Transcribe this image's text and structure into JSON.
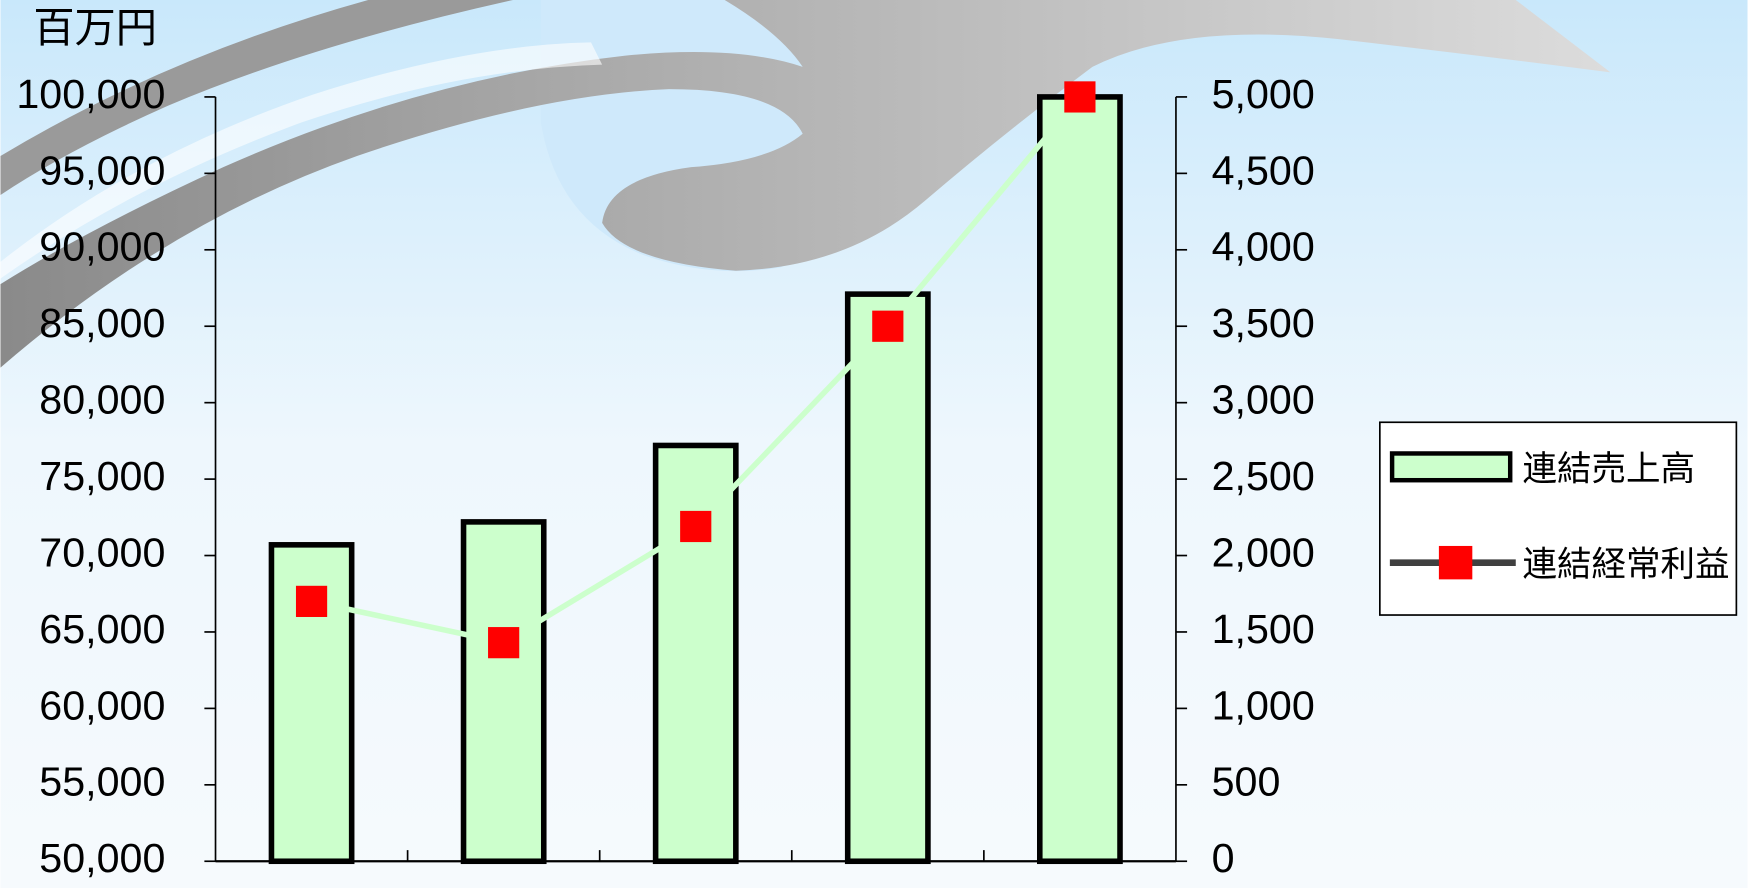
{
  "chart_data": {
    "type": "bar",
    "y_label": "百万円",
    "categories": [
      null,
      null,
      null,
      null,
      null
    ],
    "series": [
      {
        "name": "連結売上高",
        "type": "bar",
        "color": "#ccffcc",
        "values": [
          70700,
          72200,
          77200,
          87100,
          100000
        ]
      },
      {
        "name": "連結経常利益",
        "type": "line",
        "axis": "y2",
        "color": "#ff0000",
        "line_color": "#ccffcc",
        "values": [
          1700,
          1430,
          2190,
          3500,
          5000
        ]
      }
    ],
    "ylim": [
      50000,
      100000
    ],
    "yticks": [
      {
        "value": 50000,
        "label": "50,000"
      },
      {
        "value": 55000,
        "label": "55,000"
      },
      {
        "value": 60000,
        "label": "60,000"
      },
      {
        "value": 65000,
        "label": "65,000"
      },
      {
        "value": 70000,
        "label": "70,000"
      },
      {
        "value": 75000,
        "label": "75,000"
      },
      {
        "value": 80000,
        "label": "80,000"
      },
      {
        "value": 85000,
        "label": "85,000"
      },
      {
        "value": 90000,
        "label": "90,000"
      },
      {
        "value": 95000,
        "label": "95,000"
      },
      {
        "value": 100000,
        "label": "100,000"
      }
    ],
    "y2lim": [
      0,
      5000
    ],
    "y2ticks": [
      0,
      500,
      {
        "value": 1000,
        "label": "1,000"
      },
      {
        "value": 1500,
        "label": "1,500"
      },
      {
        "value": 2000,
        "label": "2,000"
      },
      {
        "value": 2500,
        "label": "2,500"
      },
      {
        "value": 3000,
        "label": "3,000"
      },
      {
        "value": 3500,
        "label": "3,500"
      },
      {
        "value": 4000,
        "label": "4,000"
      },
      {
        "value": 4500,
        "label": "4,500"
      },
      {
        "value": 5000,
        "label": "5,000"
      }
    ],
    "legend": "right"
  }
}
